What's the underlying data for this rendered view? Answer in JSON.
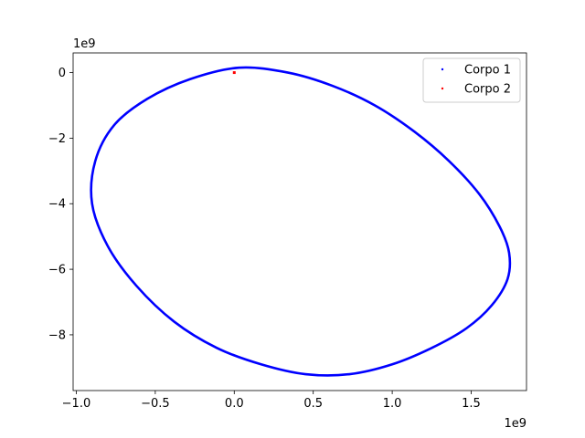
{
  "chart_data": {
    "type": "scatter",
    "title": "",
    "xlabel": "",
    "ylabel": "",
    "x_offset_text": "1e9",
    "y_offset_text": "1e9",
    "xlim": [
      -1.02,
      1.85
    ],
    "ylim": [
      -9.7,
      0.6
    ],
    "x_ticks": [
      {
        "value": -1.0,
        "label": "−1.0"
      },
      {
        "value": -0.5,
        "label": "−0.5"
      },
      {
        "value": 0.0,
        "label": "0.0"
      },
      {
        "value": 0.5,
        "label": "0.5"
      },
      {
        "value": 1.0,
        "label": "1.0"
      },
      {
        "value": 1.5,
        "label": "1.5"
      }
    ],
    "y_ticks": [
      {
        "value": 0,
        "label": "0"
      },
      {
        "value": -2,
        "label": "−2"
      },
      {
        "value": -4,
        "label": "−4"
      },
      {
        "value": -6,
        "label": "−6"
      },
      {
        "value": -8,
        "label": "−8"
      }
    ],
    "grid": false,
    "legend_position": "top-right",
    "series": [
      {
        "name": "Corpo 1",
        "color": "#0000ff",
        "x": [
          0.03,
          0.34,
          0.62,
          0.89,
          1.14,
          1.36,
          1.55,
          1.68,
          1.74,
          1.73,
          1.63,
          1.47,
          1.25,
          1.0,
          0.73,
          0.45,
          0.17,
          -0.11,
          -0.38,
          -0.62,
          -0.8,
          -0.9,
          -0.88,
          -0.76,
          -0.55,
          -0.28,
          0.03
        ],
        "y": [
          0.15,
          0.0,
          -0.4,
          -1.0,
          -1.8,
          -2.7,
          -3.7,
          -4.7,
          -5.5,
          -6.3,
          -7.1,
          -7.8,
          -8.4,
          -8.9,
          -9.2,
          -9.2,
          -8.9,
          -8.4,
          -7.6,
          -6.5,
          -5.3,
          -4.0,
          -2.7,
          -1.6,
          -0.8,
          -0.2,
          0.15
        ]
      },
      {
        "name": "Corpo 2",
        "color": "#ff0000",
        "x": [
          0.0
        ],
        "y": [
          0.0
        ]
      }
    ]
  }
}
